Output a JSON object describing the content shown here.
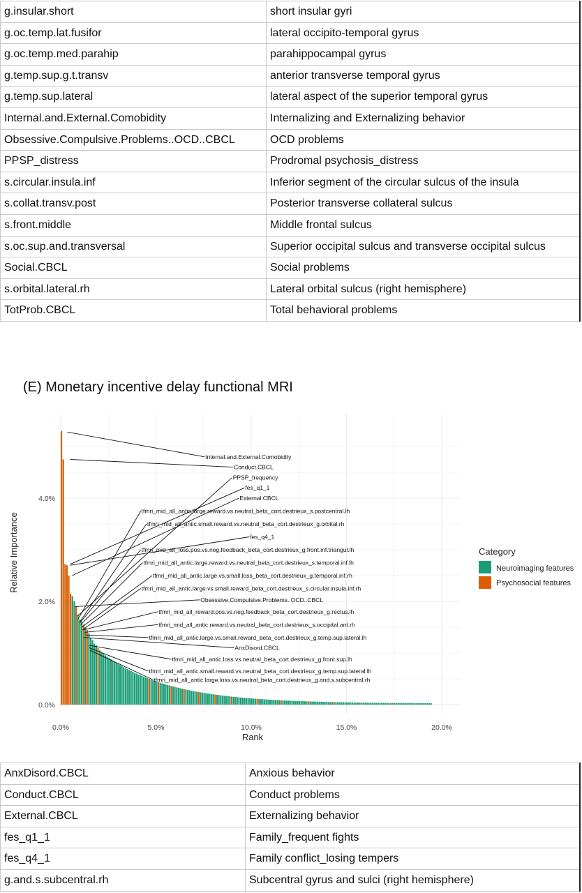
{
  "top_table": [
    [
      "g.insular.short",
      "short insular gyri"
    ],
    [
      "g.oc.temp.lat.fusifor",
      "lateral occipito-temporal gyrus"
    ],
    [
      "g.oc.temp.med.parahip",
      "parahippocampal gyrus"
    ],
    [
      "g.temp.sup.g.t.transv",
      "anterior transverse temporal gyrus"
    ],
    [
      "g.temp.sup.lateral",
      "lateral aspect of the superior temporal gyrus"
    ],
    [
      "Internal.and.External.Comobidity",
      "Internalizing and Externalizing behavior"
    ],
    [
      "Obsessive.Compulsive.Problems..OCD..CBCL",
      "OCD problems"
    ],
    [
      "PPSP_distress",
      "Prodromal psychosis_distress"
    ],
    [
      "s.circular.insula.inf",
      "Inferior segment of the circular sulcus of the insula"
    ],
    [
      "s.collat.transv.post",
      "Posterior transverse collateral sulcus"
    ],
    [
      "s.front.middle",
      "Middle frontal sulcus"
    ],
    [
      "s.oc.sup.and.transversal",
      "Superior occipital sulcus and transverse occipital sulcus"
    ],
    [
      "Social.CBCL",
      "Social problems"
    ],
    [
      "s.orbital.lateral.rh",
      "Lateral orbital sulcus (right hemisphere)"
    ],
    [
      "TotProb.CBCL",
      "Total behavioral problems"
    ]
  ],
  "section_heading": "(E) Monetary incentive delay functional MRI",
  "bottom_table": [
    [
      "AnxDisord.CBCL",
      "Anxious behavior"
    ],
    [
      "Conduct.CBCL",
      "Conduct problems"
    ],
    [
      "External.CBCL",
      "Externalizing behavior"
    ],
    [
      "fes_q1_1",
      "Family_frequent fights"
    ],
    [
      "fes_q4_1",
      "Family conflict_losing tempers"
    ],
    [
      "g.and.s.subcentral.rh",
      "Subcentral gyrus and sulci (right hemisphere)"
    ]
  ],
  "chart_data": {
    "type": "bar",
    "xlabel": "Rank",
    "ylabel": "Relative Importance",
    "x_ticks": [
      "0.0%",
      "5.0%",
      "10.0%",
      "15.0%",
      "20.0%"
    ],
    "y_ticks": [
      "0.0%",
      "2.0%",
      "4.0%"
    ],
    "xlim": [
      0,
      20.5
    ],
    "ylim": [
      0,
      5.4
    ],
    "grid": true,
    "legend": {
      "title": "Category",
      "position": "right",
      "entries": [
        {
          "name": "Neuroimaging features",
          "color": "#1b9e77"
        },
        {
          "name": "Psychosocial features",
          "color": "#d95f02"
        }
      ]
    },
    "bars_head": [
      {
        "v": 5.3,
        "c": 1
      },
      {
        "v": 4.75,
        "c": 1
      },
      {
        "v": 2.72,
        "c": 1
      },
      {
        "v": 2.7,
        "c": 1
      },
      {
        "v": 2.5,
        "c": 1
      },
      {
        "v": 2.15,
        "c": 1
      },
      {
        "v": 2.1,
        "c": 0
      },
      {
        "v": 2.0,
        "c": 0
      },
      {
        "v": 1.9,
        "c": 1
      },
      {
        "v": 1.75,
        "c": 0
      },
      {
        "v": 1.65,
        "c": 0
      },
      {
        "v": 1.6,
        "c": 0
      },
      {
        "v": 1.55,
        "c": 1
      },
      {
        "v": 1.5,
        "c": 0
      },
      {
        "v": 1.45,
        "c": 1
      },
      {
        "v": 1.38,
        "c": 0
      },
      {
        "v": 1.3,
        "c": 0
      },
      {
        "v": 1.25,
        "c": 0
      },
      {
        "v": 1.18,
        "c": 0
      },
      {
        "v": 1.15,
        "c": 0
      },
      {
        "v": 1.1,
        "c": 1
      },
      {
        "v": 1.05,
        "c": 0
      },
      {
        "v": 1.0,
        "c": 0
      }
    ],
    "tail": {
      "n_bars": 180,
      "start_value": 0.98,
      "end_value": 0.02,
      "x_end": 19.5,
      "decay": 5.0,
      "orange_positions": [
        25,
        30,
        37,
        44,
        52,
        61,
        70,
        84,
        97,
        112,
        126,
        141,
        158
      ]
    },
    "annotations": [
      {
        "text": "Internal.and.External.Comobidity",
        "x": 7.55,
        "y": 4.8,
        "tx": 0.35,
        "ty": 5.28
      },
      {
        "text": "Conduct.CBCL",
        "x": 9.05,
        "y": 4.6,
        "tx": 0.5,
        "ty": 4.75
      },
      {
        "text": "PPSP_frequency",
        "x": 9.0,
        "y": 4.4,
        "tx": 0.9,
        "ty": 1.72
      },
      {
        "text": "fes_q1_1",
        "x": 9.65,
        "y": 4.2,
        "tx": 0.5,
        "ty": 2.72
      },
      {
        "text": "External.CBCL",
        "x": 9.35,
        "y": 4.0,
        "tx": 0.6,
        "ty": 2.5
      },
      {
        "text": "tfmri_mid_all_antic.large.reward.vs.neutral_beta_cort.destrieux_s.postcentral.lh",
        "x": 4.2,
        "y": 3.75,
        "tx": 0.9,
        "ty": 1.65
      },
      {
        "text": "tfmri_mid_all_antic.small.reward.vs.neutral_beta_cort.destrieux_g.orbital.rh",
        "x": 4.5,
        "y": 3.5,
        "tx": 1.0,
        "ty": 1.6
      },
      {
        "text": "fes_q4_1",
        "x": 9.9,
        "y": 3.25,
        "tx": 0.5,
        "ty": 2.7
      },
      {
        "text": "tfmri_mid_all_loss.pos.vs.neg.feedback_beta_cort.destrieux_g.front.inf.triangul.lh",
        "x": 4.2,
        "y": 3.0,
        "tx": 1.0,
        "ty": 1.58
      },
      {
        "text": "tfmri_mid_all_antic.large.reward.vs.neutral_beta_cort.destrieux_s.temporal.inf.lh",
        "x": 4.3,
        "y": 2.75,
        "tx": 1.05,
        "ty": 1.55
      },
      {
        "text": "tfmri_mid_all_antic.large.vs.small.loss_beta_cort.destrieux_g.temporal.inf.rh",
        "x": 4.8,
        "y": 2.5,
        "tx": 1.1,
        "ty": 1.5
      },
      {
        "text": "tfmri_mid_all_antic.large.vs.small.reward_beta_cort.destrieux_s.circular.insula.inf.rh",
        "x": 4.2,
        "y": 2.25,
        "tx": 1.15,
        "ty": 1.45
      },
      {
        "text": "Obsessive.Compulsive.Problems..OCD..CBCL",
        "x": 7.3,
        "y": 2.03,
        "tx": 0.75,
        "ty": 1.9
      },
      {
        "text": "tfmri_mid_all_reward.pos.vs.neg.feedback_beta_cort.destrieux_g.rectus.lh",
        "x": 5.1,
        "y": 1.8,
        "tx": 1.2,
        "ty": 1.45
      },
      {
        "text": "tfmri_mid_all_antic.reward.vs.neutral_beta_cort.destrieux_s.occipital.ant.rh",
        "x": 5.1,
        "y": 1.55,
        "tx": 1.25,
        "ty": 1.4
      },
      {
        "text": "tfmri_mid_all_antic.large.vs.small.reward_beta_cort.destrieux_g.temp.sup.lateral.lh",
        "x": 4.6,
        "y": 1.3,
        "tx": 1.3,
        "ty": 1.35
      },
      {
        "text": "AnxDisord.CBCL",
        "x": 9.1,
        "y": 1.1,
        "tx": 1.2,
        "ty": 1.3
      },
      {
        "text": "tfmri_mid_all_antic.loss.vs.neutral_beta_cort.destrieux_g.front.sup.lh",
        "x": 5.8,
        "y": 0.88,
        "tx": 1.45,
        "ty": 1.15
      },
      {
        "text": "tfmri_mid_all_antic.small.reward.vs.neutral_beta_cort.destrieux_g.temp.sup.lateral.lh",
        "x": 4.6,
        "y": 0.65,
        "tx": 1.5,
        "ty": 1.1
      },
      {
        "text": "tfmri_mid_all_antic.large.loss.vs.neutral_beta_cort.destrieux_g.and.s.subcentral.rh",
        "x": 4.85,
        "y": 0.48,
        "tx": 1.55,
        "ty": 1.05
      }
    ]
  }
}
